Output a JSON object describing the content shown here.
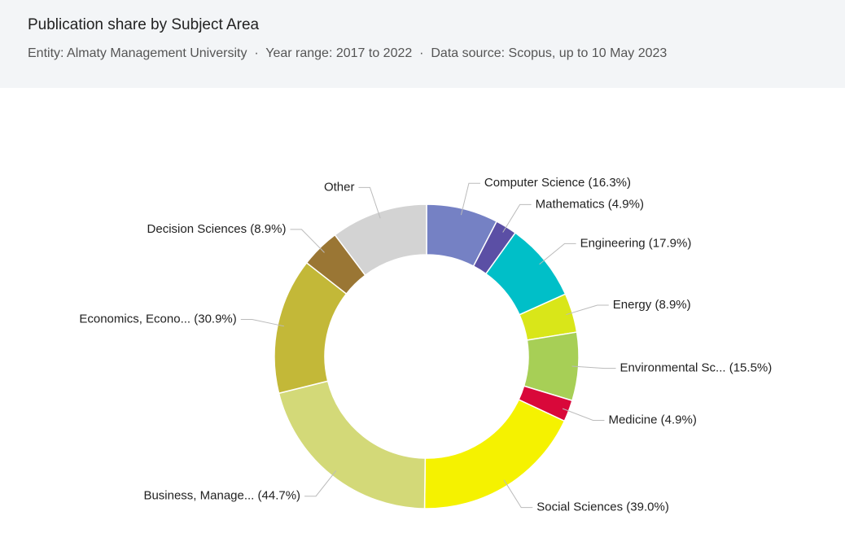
{
  "chart_data": {
    "type": "donut",
    "title": "Publication share by Subject Area",
    "subtitle": "Entity: Almaty Management University  ·  Year range: 2017 to 2022  ·  Data source: Scopus, up to 10 May 2023",
    "categories": [
      "Computer Science (16.3%)",
      "Mathematics (4.9%)",
      "Engineering (17.9%)",
      "Energy (8.9%)",
      "Environmental Sc... (15.5%)",
      "Medicine (4.9%)",
      "Social Sciences (39.0%)",
      "Business, Manage... (44.7%)",
      "Economics, Econo... (30.9%)",
      "Decision Sciences (8.9%)",
      "Other"
    ],
    "values": [
      16.3,
      4.9,
      17.9,
      8.9,
      15.5,
      4.9,
      39.0,
      44.7,
      30.9,
      8.9,
      22
    ],
    "colors": [
      "#7581c4",
      "#5b4fa5",
      "#00bfc8",
      "#d9e619",
      "#a7cf56",
      "#d9083a",
      "#f5f200",
      "#d3d978",
      "#c3b838",
      "#9a7634",
      "#d3d3d3"
    ]
  }
}
